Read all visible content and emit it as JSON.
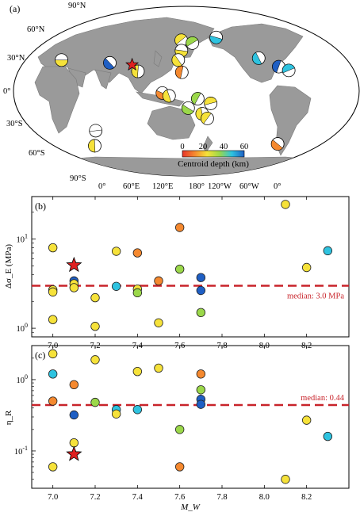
{
  "figure": {
    "panel_a_tag": "(a)",
    "panel_b_tag": "(b)",
    "panel_c_tag": "(c)"
  },
  "map": {
    "lat_labels": [
      "90°N",
      "60°N",
      "30°N",
      "0°",
      "30°S",
      "60°S",
      "90°S"
    ],
    "lon_labels": [
      "0°",
      "60°E",
      "120°E",
      "180°",
      "120°W",
      "60°W",
      "0°"
    ],
    "colorbar": {
      "ticks": [
        "0",
        "20",
        "40",
        "60"
      ],
      "label": "Centroid depth (km)",
      "colors": [
        "#e8352a",
        "#f5892f",
        "#f6e23a",
        "#9bd84a",
        "#2ec3e0",
        "#1f5fc4"
      ]
    },
    "star_color": "#e02020",
    "events": [
      {
        "lon": -5,
        "lat": 33,
        "color": "#f6e23a"
      },
      {
        "lon": 58,
        "lat": 30,
        "color": "#1f5fc4"
      },
      {
        "lon": 96,
        "lat": 21,
        "color": "#f6e23a"
      },
      {
        "lon": 141,
        "lat": 54,
        "color": "#f6e23a"
      },
      {
        "lon": 143,
        "lat": 43,
        "color": "#f6e23a"
      },
      {
        "lon": 140,
        "lat": 33,
        "color": "#f6e23a"
      },
      {
        "lon": 145,
        "lat": 20,
        "color": "#f5892f"
      },
      {
        "lon": 160,
        "lat": 51,
        "color": "#9bd84a"
      },
      {
        "lon": -153,
        "lat": 57,
        "color": "#2ec3e0"
      },
      {
        "lon": -118,
        "lat": 35,
        "color": "#2ec3e0"
      },
      {
        "lon": -103,
        "lat": 26,
        "color": "#1f5fc4"
      },
      {
        "lon": -95,
        "lat": 22,
        "color": "#2ec3e0"
      },
      {
        "lon": 125,
        "lat": -2,
        "color": "#f5892f"
      },
      {
        "lon": 132,
        "lat": -5,
        "color": "#f6e23a"
      },
      {
        "lon": 162,
        "lat": -8,
        "color": "#9bd84a"
      },
      {
        "lon": 176,
        "lat": -13,
        "color": "#f6e23a"
      },
      {
        "lon": 152,
        "lat": -18,
        "color": "#9bd84a"
      },
      {
        "lon": 168,
        "lat": -24,
        "color": "#f6e23a"
      },
      {
        "lon": 175,
        "lat": -29,
        "color": "#f6e23a"
      },
      {
        "lon": 23,
        "lat": -42,
        "color": "#ffffff"
      },
      {
        "lon": -40,
        "lat": -56,
        "color": "#f5892f"
      },
      {
        "lon": -30,
        "lat": -58,
        "color": "#f6e23a"
      }
    ],
    "star": {
      "lon": 86,
      "lat": 28
    }
  },
  "chart_data": [
    {
      "type": "scatter",
      "panel": "(b)",
      "xlabel": "",
      "ylabel": "Δσ_E (MPa)",
      "xlim": [
        6.9,
        8.4
      ],
      "ylim": [
        0.8,
        30
      ],
      "yscale": "log",
      "xticks": [
        "7.0",
        "7.2",
        "7.4",
        "7.6",
        "7.8",
        "8.0",
        "8.2"
      ],
      "yticks": [
        {
          "value": 1,
          "base": "10",
          "exp": "0"
        },
        {
          "value": 10,
          "base": "10",
          "exp": "1"
        }
      ],
      "median": {
        "value": 3.0,
        "label": "median: 3.0 MPa",
        "color": "#c8232a"
      },
      "points": [
        {
          "x": 7.0,
          "y": 8.0,
          "color": "#f6e23a"
        },
        {
          "x": 7.0,
          "y": 2.7,
          "color": "#f6e23a"
        },
        {
          "x": 7.0,
          "y": 2.55,
          "color": "#f6e23a"
        },
        {
          "x": 7.0,
          "y": 1.25,
          "color": "#f6e23a"
        },
        {
          "x": 7.1,
          "y": 3.4,
          "color": "#1f5fc4"
        },
        {
          "x": 7.1,
          "y": 3.15,
          "color": "#f6e23a"
        },
        {
          "x": 7.1,
          "y": 2.85,
          "color": "#f6e23a"
        },
        {
          "x": 7.2,
          "y": 2.2,
          "color": "#f6e23a"
        },
        {
          "x": 7.2,
          "y": 1.05,
          "color": "#f6e23a"
        },
        {
          "x": 7.3,
          "y": 7.3,
          "color": "#f6e23a"
        },
        {
          "x": 7.3,
          "y": 2.95,
          "color": "#2ec3e0"
        },
        {
          "x": 7.4,
          "y": 7.0,
          "color": "#f5892f"
        },
        {
          "x": 7.4,
          "y": 2.75,
          "color": "#f6e23a"
        },
        {
          "x": 7.4,
          "y": 2.5,
          "color": "#9bd84a"
        },
        {
          "x": 7.5,
          "y": 3.4,
          "color": "#f5892f"
        },
        {
          "x": 7.5,
          "y": 1.15,
          "color": "#f6e23a"
        },
        {
          "x": 7.6,
          "y": 13.5,
          "color": "#f5892f"
        },
        {
          "x": 7.6,
          "y": 4.6,
          "color": "#9bd84a"
        },
        {
          "x": 7.7,
          "y": 3.7,
          "color": "#1f5fc4"
        },
        {
          "x": 7.7,
          "y": 2.65,
          "color": "#1f5fc4"
        },
        {
          "x": 7.7,
          "y": 1.5,
          "color": "#9bd84a"
        },
        {
          "x": 8.1,
          "y": 24.5,
          "color": "#f6e23a"
        },
        {
          "x": 8.2,
          "y": 4.8,
          "color": "#f6e23a"
        },
        {
          "x": 8.3,
          "y": 7.4,
          "color": "#2ec3e0"
        }
      ],
      "star": {
        "x": 7.1,
        "y": 5.1,
        "color": "#e02020"
      }
    },
    {
      "type": "scatter",
      "panel": "(c)",
      "xlabel": "M_W",
      "ylabel": "η_R",
      "xlim": [
        6.9,
        8.4
      ],
      "ylim": [
        0.03,
        3
      ],
      "yscale": "log",
      "xticks": [
        "7.0",
        "7.2",
        "7.4",
        "7.6",
        "7.8",
        "8.0",
        "8.2"
      ],
      "yticks": [
        {
          "value": 0.1,
          "base": "10",
          "exp": "-1"
        },
        {
          "value": 1,
          "base": "10",
          "exp": "0"
        }
      ],
      "median": {
        "value": 0.44,
        "label": "median: 0.44",
        "color": "#c8232a"
      },
      "points": [
        {
          "x": 7.0,
          "y": 2.3,
          "color": "#f6e23a"
        },
        {
          "x": 7.0,
          "y": 1.2,
          "color": "#2ec3e0"
        },
        {
          "x": 7.0,
          "y": 0.5,
          "color": "#f5892f"
        },
        {
          "x": 7.0,
          "y": 0.06,
          "color": "#f6e23a"
        },
        {
          "x": 7.1,
          "y": 0.85,
          "color": "#f5892f"
        },
        {
          "x": 7.1,
          "y": 0.32,
          "color": "#1f5fc4"
        },
        {
          "x": 7.1,
          "y": 0.13,
          "color": "#f6e23a"
        },
        {
          "x": 7.2,
          "y": 1.9,
          "color": "#f6e23a"
        },
        {
          "x": 7.2,
          "y": 0.48,
          "color": "#9bd84a"
        },
        {
          "x": 7.3,
          "y": 0.38,
          "color": "#2ec3e0"
        },
        {
          "x": 7.3,
          "y": 0.33,
          "color": "#f6e23a"
        },
        {
          "x": 7.4,
          "y": 1.3,
          "color": "#f6e23a"
        },
        {
          "x": 7.4,
          "y": 0.38,
          "color": "#2ec3e0"
        },
        {
          "x": 7.5,
          "y": 1.45,
          "color": "#f6e23a"
        },
        {
          "x": 7.6,
          "y": 0.2,
          "color": "#9bd84a"
        },
        {
          "x": 7.6,
          "y": 0.06,
          "color": "#f5892f"
        },
        {
          "x": 7.7,
          "y": 1.2,
          "color": "#f5892f"
        },
        {
          "x": 7.7,
          "y": 0.72,
          "color": "#9bd84a"
        },
        {
          "x": 7.7,
          "y": 0.53,
          "color": "#1f5fc4"
        },
        {
          "x": 7.7,
          "y": 0.45,
          "color": "#1f5fc4"
        },
        {
          "x": 8.1,
          "y": 0.04,
          "color": "#f6e23a"
        },
        {
          "x": 8.2,
          "y": 0.27,
          "color": "#f6e23a"
        },
        {
          "x": 8.3,
          "y": 0.16,
          "color": "#2ec3e0"
        }
      ],
      "star": {
        "x": 7.1,
        "y": 0.09,
        "color": "#e02020"
      }
    }
  ]
}
